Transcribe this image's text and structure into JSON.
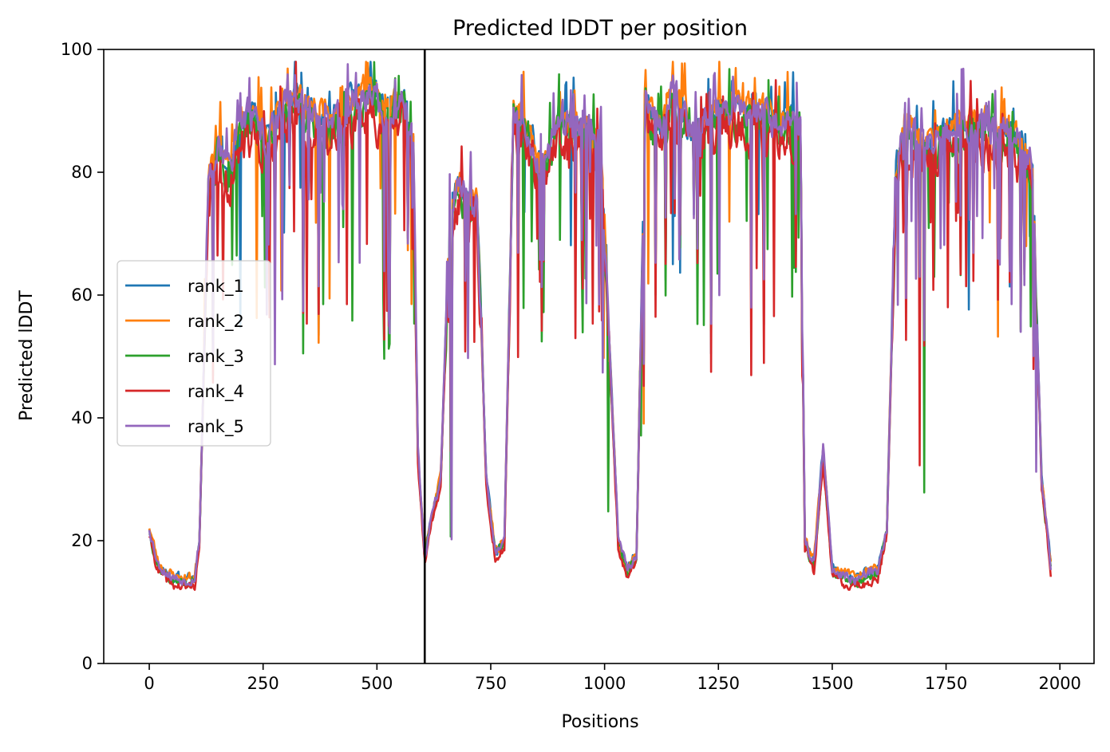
{
  "chart_data": {
    "type": "line",
    "title": "Predicted lDDT per position",
    "xlabel": "Positions",
    "ylabel": "Predicted lDDT",
    "xlim": [
      -100,
      2075
    ],
    "ylim": [
      0,
      100
    ],
    "xticks": [
      0,
      250,
      500,
      750,
      1000,
      1250,
      1500,
      1750,
      2000
    ],
    "yticks": [
      0,
      20,
      40,
      60,
      80,
      100
    ],
    "grid": false,
    "legend": "center-left",
    "vline_x": 605,
    "colors": {
      "rank_1": "#1f77b4",
      "rank_2": "#ff7f0e",
      "rank_3": "#2ca02c",
      "rank_4": "#d62728",
      "rank_5": "#9467bd",
      "vline": "#000000"
    },
    "profile": {
      "x": [
        0,
        20,
        50,
        80,
        100,
        110,
        130,
        150,
        175,
        200,
        230,
        260,
        300,
        350,
        400,
        450,
        480,
        520,
        560,
        580,
        590,
        605,
        620,
        640,
        660,
        680,
        700,
        720,
        740,
        760,
        780,
        800,
        830,
        860,
        900,
        950,
        990,
        1000,
        1030,
        1050,
        1070,
        1090,
        1100,
        1130,
        1150,
        1200,
        1250,
        1300,
        1350,
        1400,
        1430,
        1440,
        1460,
        1480,
        1500,
        1550,
        1600,
        1620,
        1640,
        1660,
        1700,
        1750,
        1800,
        1850,
        1900,
        1940,
        1960,
        1980
      ],
      "y": [
        22,
        16,
        14,
        13.5,
        14,
        20,
        78,
        84,
        80,
        88,
        89,
        84,
        92,
        90,
        88,
        91,
        93,
        90,
        92,
        85,
        35,
        17,
        24,
        30,
        72,
        78,
        75,
        75,
        30,
        18,
        20,
        90,
        87,
        80,
        88,
        87,
        85,
        70,
        20,
        15,
        18,
        92,
        90,
        88,
        93,
        86,
        90,
        90,
        89,
        88,
        88,
        20,
        16,
        35,
        15,
        14,
        15,
        22,
        80,
        88,
        84,
        86,
        88,
        87,
        86,
        80,
        30,
        16
      ]
    },
    "series": [
      {
        "name": "rank_1",
        "seed": 11,
        "offset": 0.4,
        "noise": 4.2
      },
      {
        "name": "rank_2",
        "seed": 23,
        "offset": 0.9,
        "noise": 4.0
      },
      {
        "name": "rank_3",
        "seed": 37,
        "offset": -1.2,
        "noise": 5.2
      },
      {
        "name": "rank_4",
        "seed": 41,
        "offset": -3.0,
        "noise": 6.5
      },
      {
        "name": "rank_5",
        "seed": 53,
        "offset": 0.2,
        "noise": 4.8
      }
    ]
  }
}
